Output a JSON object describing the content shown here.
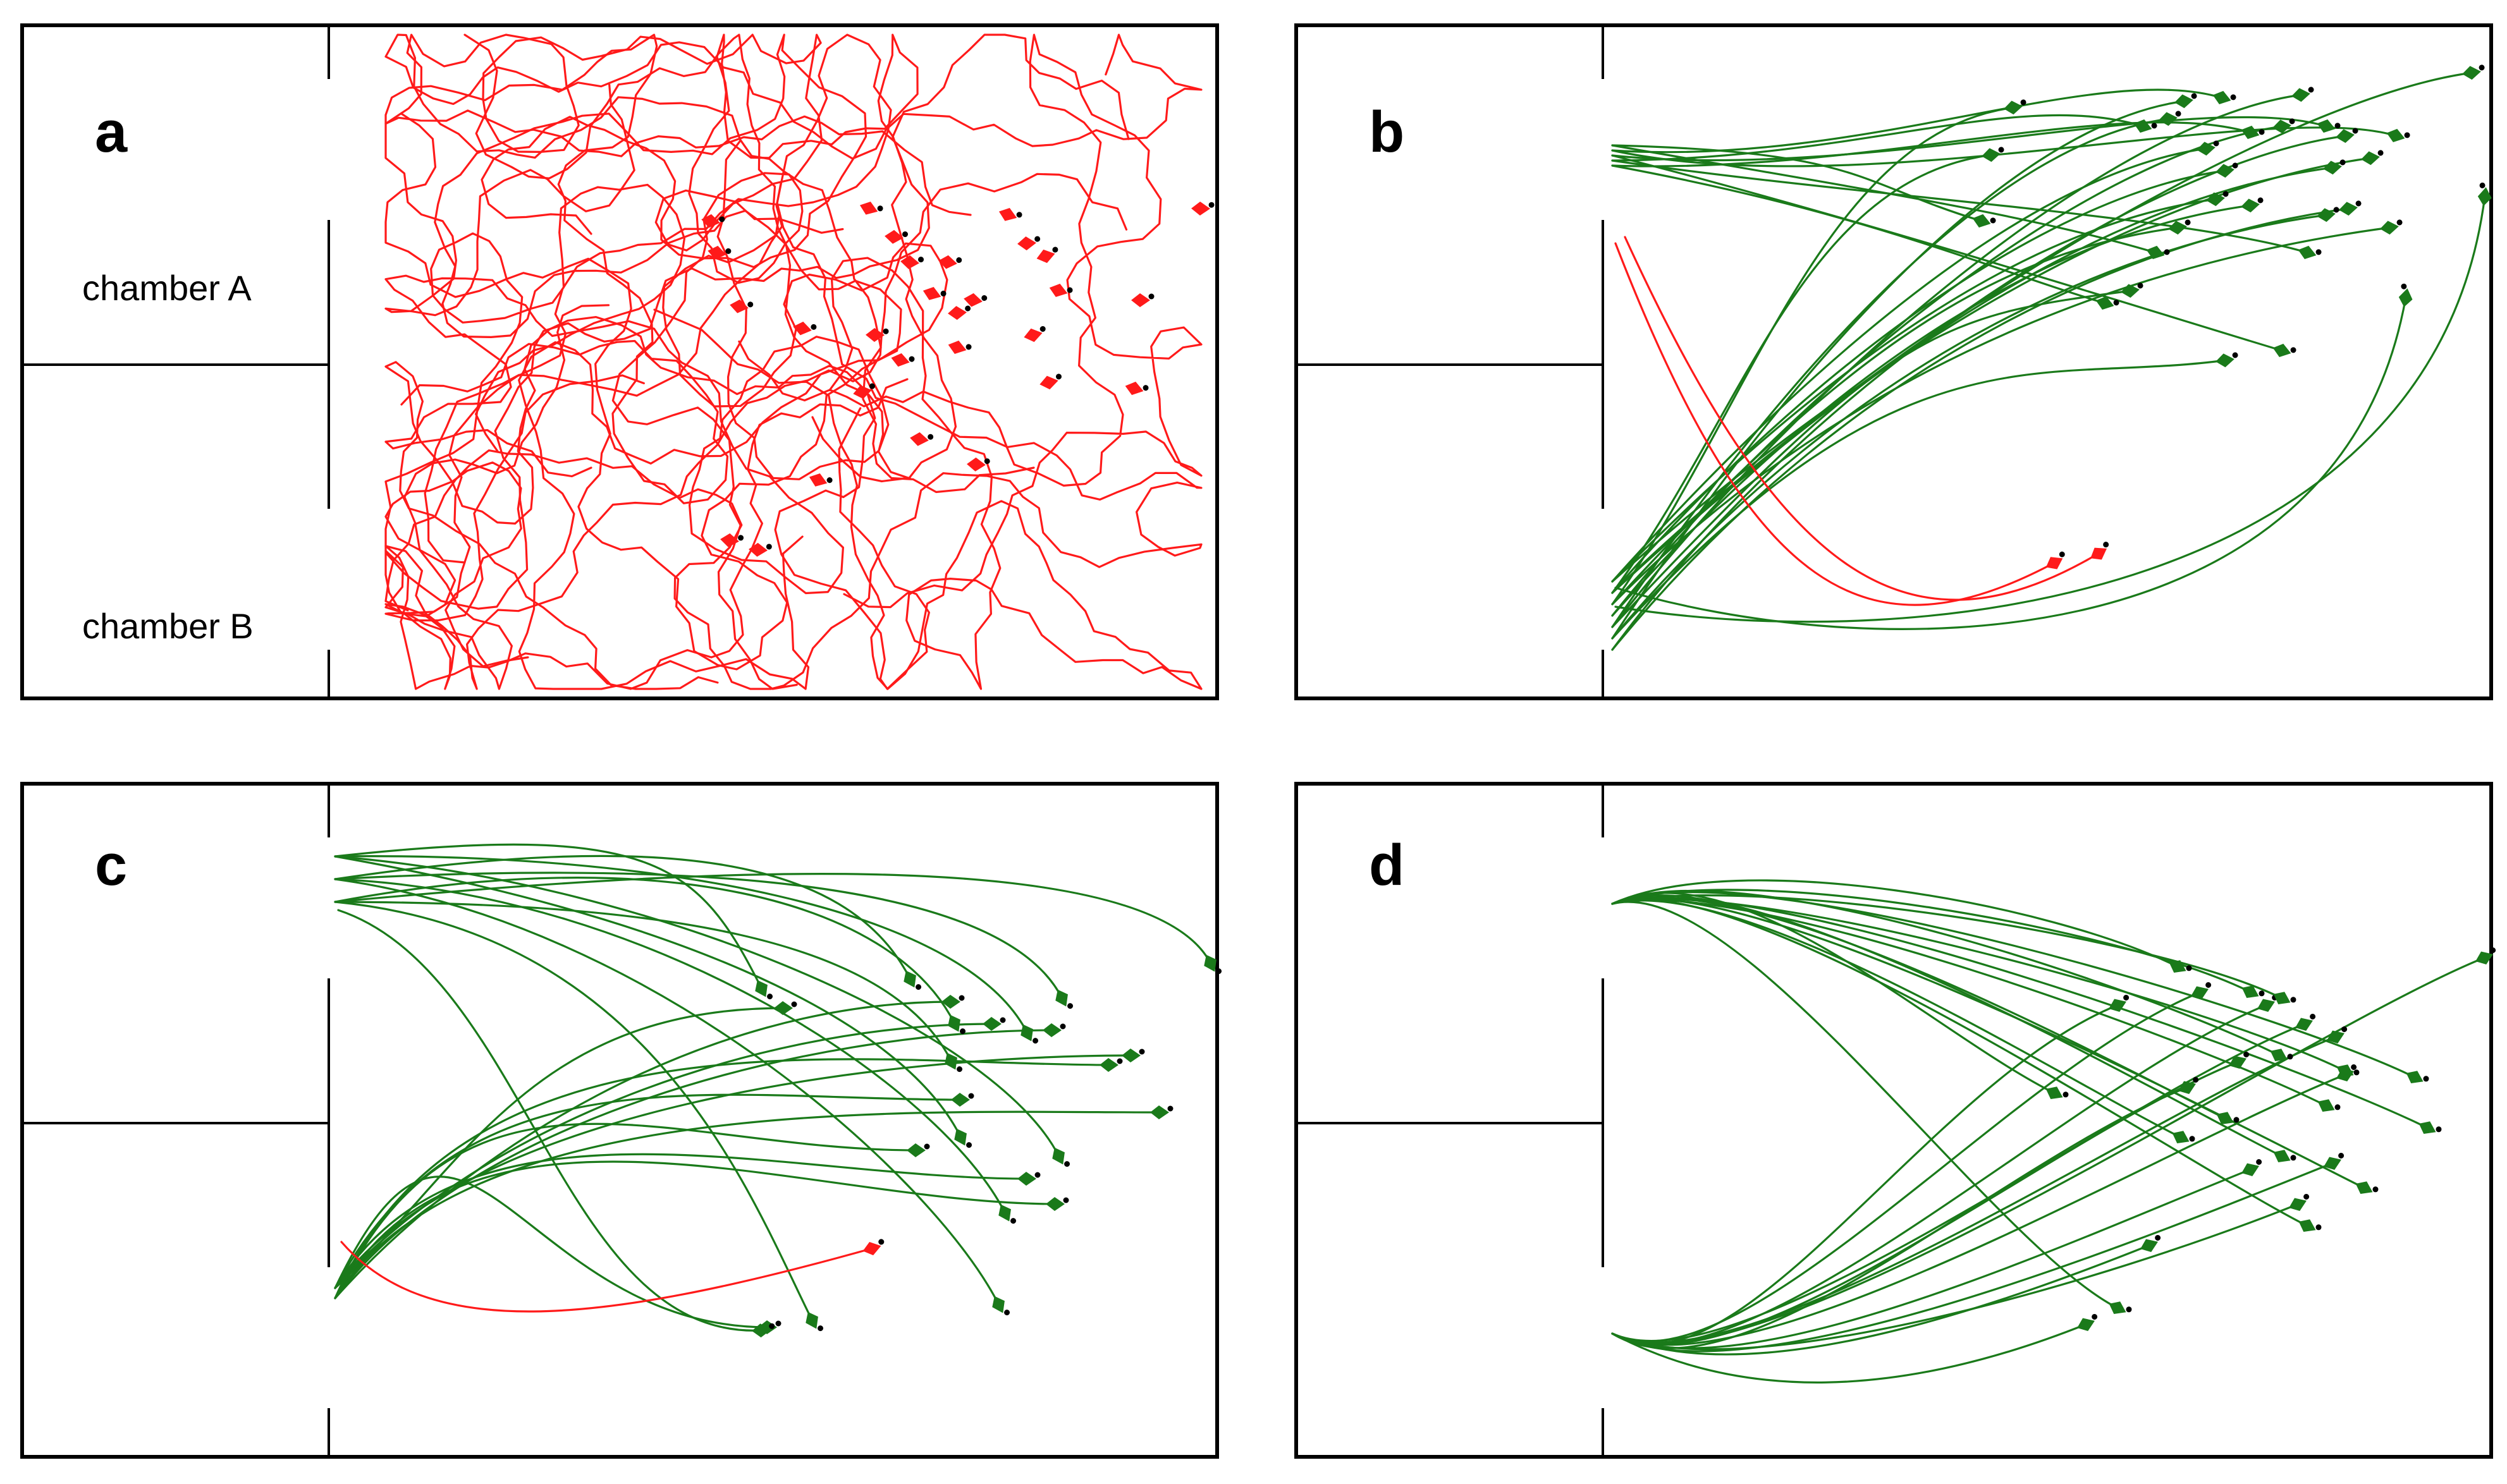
{
  "figure": {
    "colors": {
      "success": "#1a7a1a",
      "failure": "#ff1a1a",
      "walls": "#000000"
    },
    "panels": [
      {
        "letter": "a",
        "chamber_a_label": "chamber A",
        "chamber_b_label": "chamber B",
        "icon": "agent-arrow-icon"
      },
      {
        "letter": "b",
        "chamber_a_label": "",
        "chamber_b_label": "",
        "icon": "agent-arrow-icon"
      },
      {
        "letter": "c",
        "chamber_a_label": "",
        "chamber_b_label": "",
        "icon": "agent-arrow-icon"
      },
      {
        "letter": "d",
        "chamber_a_label": "",
        "chamber_b_label": "",
        "icon": "agent-arrow-icon"
      }
    ]
  }
}
